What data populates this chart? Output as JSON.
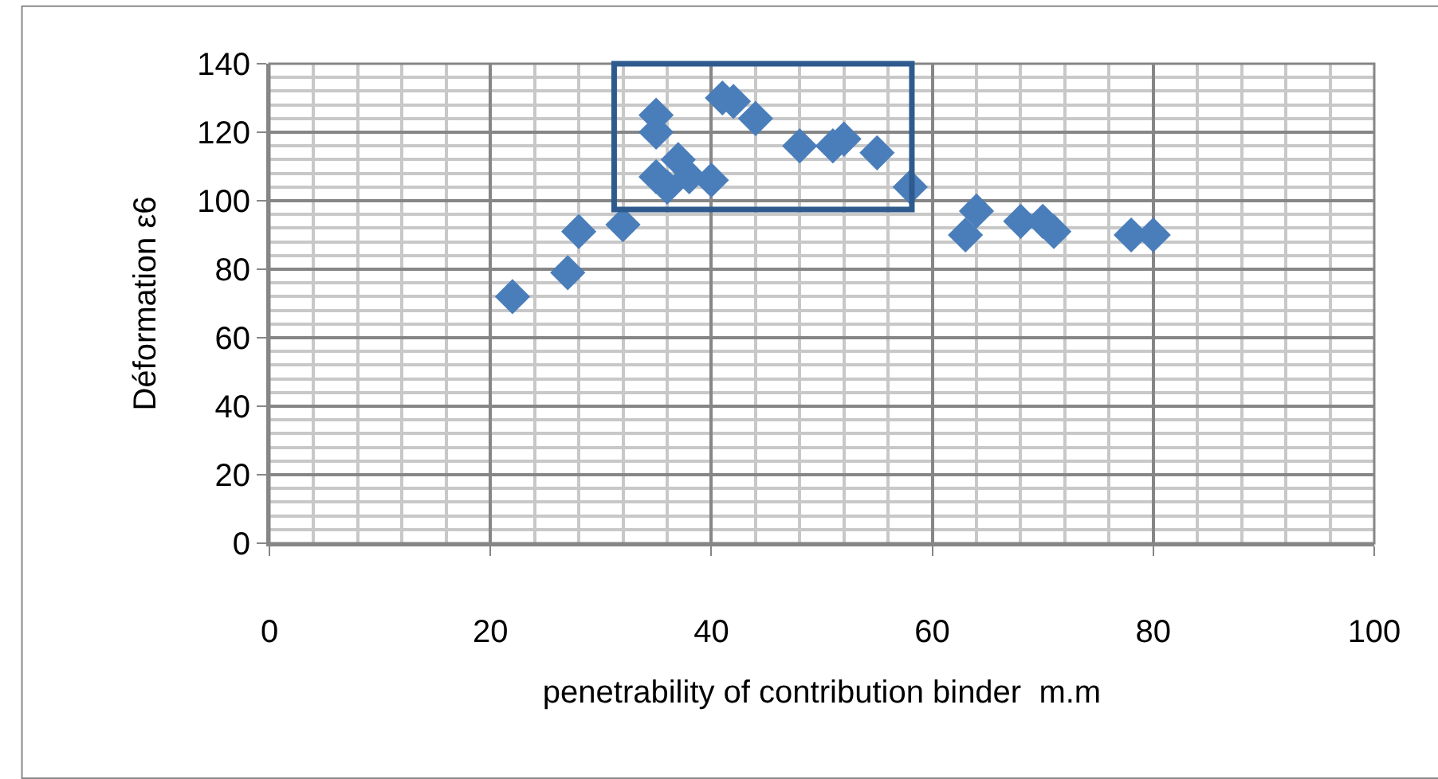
{
  "chart_data": {
    "type": "scatter",
    "xlabel": "penetrability of contribution binder  m.m",
    "ylabel": "Déformation ε6",
    "x": [
      22,
      27,
      28,
      32,
      35,
      35,
      35,
      36,
      37,
      38,
      40,
      41,
      42,
      44,
      48,
      51,
      52,
      55,
      58,
      63,
      64,
      68,
      70,
      71,
      78,
      80
    ],
    "series": [
      {
        "color": "#4a7ebb",
        "values": [
          72,
          79,
          91,
          93,
          125,
          120,
          107,
          104,
          112,
          107,
          106,
          130,
          129,
          124,
          116,
          116,
          118,
          114,
          104,
          90,
          97,
          94,
          94,
          91,
          90,
          90
        ]
      }
    ],
    "xlim": [
      0,
      100
    ],
    "xticks": [
      0,
      20,
      40,
      60,
      80,
      100
    ],
    "ylim": [
      0,
      140
    ],
    "yticks": [
      0,
      20,
      40,
      60,
      80,
      100,
      120,
      140
    ],
    "grid": true,
    "marker": "diamond"
  }
}
